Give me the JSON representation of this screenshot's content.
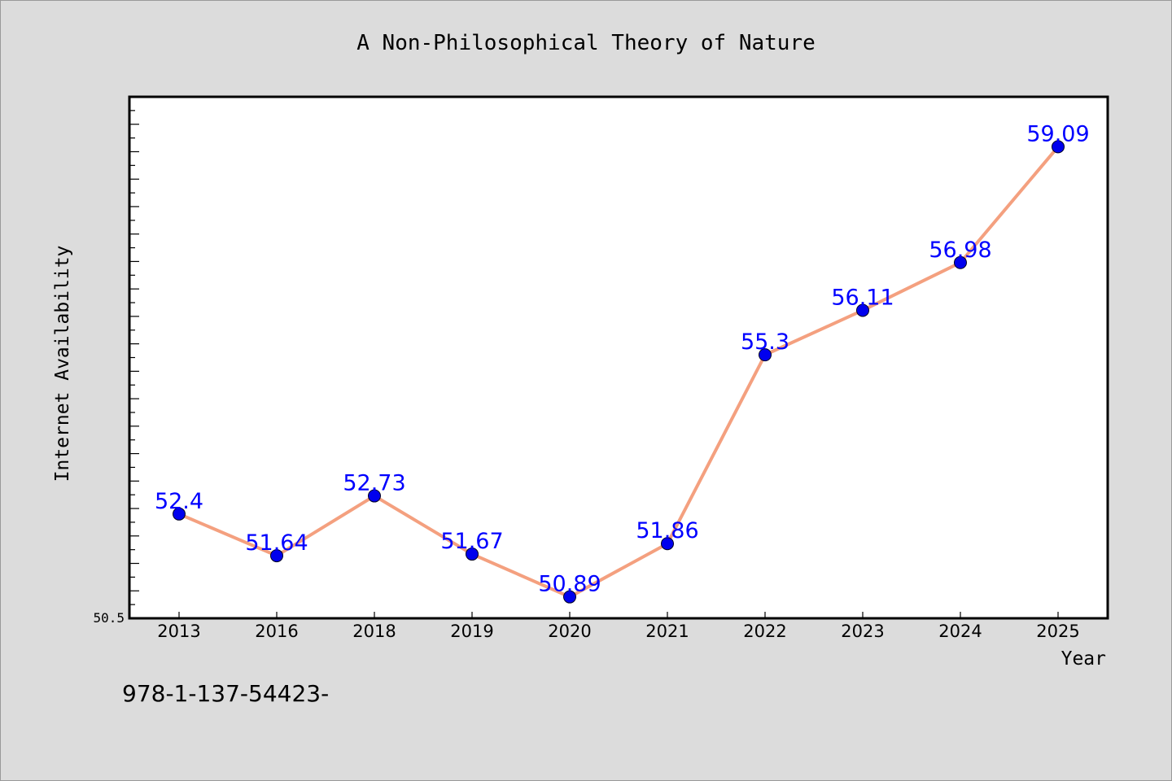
{
  "chart_data": {
    "type": "line",
    "title": "A Non-Philosophical Theory of Nature",
    "xlabel": "Year",
    "ylabel": "Internet Availability",
    "categories": [
      "2013",
      "2016",
      "2018",
      "2019",
      "2020",
      "2021",
      "2022",
      "2023",
      "2024",
      "2025"
    ],
    "series": [
      {
        "values": [
          52.4,
          51.64,
          52.73,
          51.67,
          50.89,
          51.86,
          55.3,
          56.11,
          56.98,
          59.09
        ],
        "data_labels": [
          "52.4",
          "51.64",
          "52.73",
          "51.67",
          "50.89",
          "51.86",
          "55.3",
          "56.11",
          "56.98",
          "59.09"
        ]
      }
    ],
    "ylim": [
      50.5,
      60.0
    ],
    "y_tick_labels": [
      "50.5"
    ],
    "grid": false,
    "legend": "none",
    "colors": {
      "line": "#f4a07f",
      "marker": "#0000ee",
      "data_label": "#0000ff",
      "plot_background": "#ffffff",
      "page_background": "#dcdcdc"
    }
  },
  "footer_text": "978-1-137-54423-"
}
